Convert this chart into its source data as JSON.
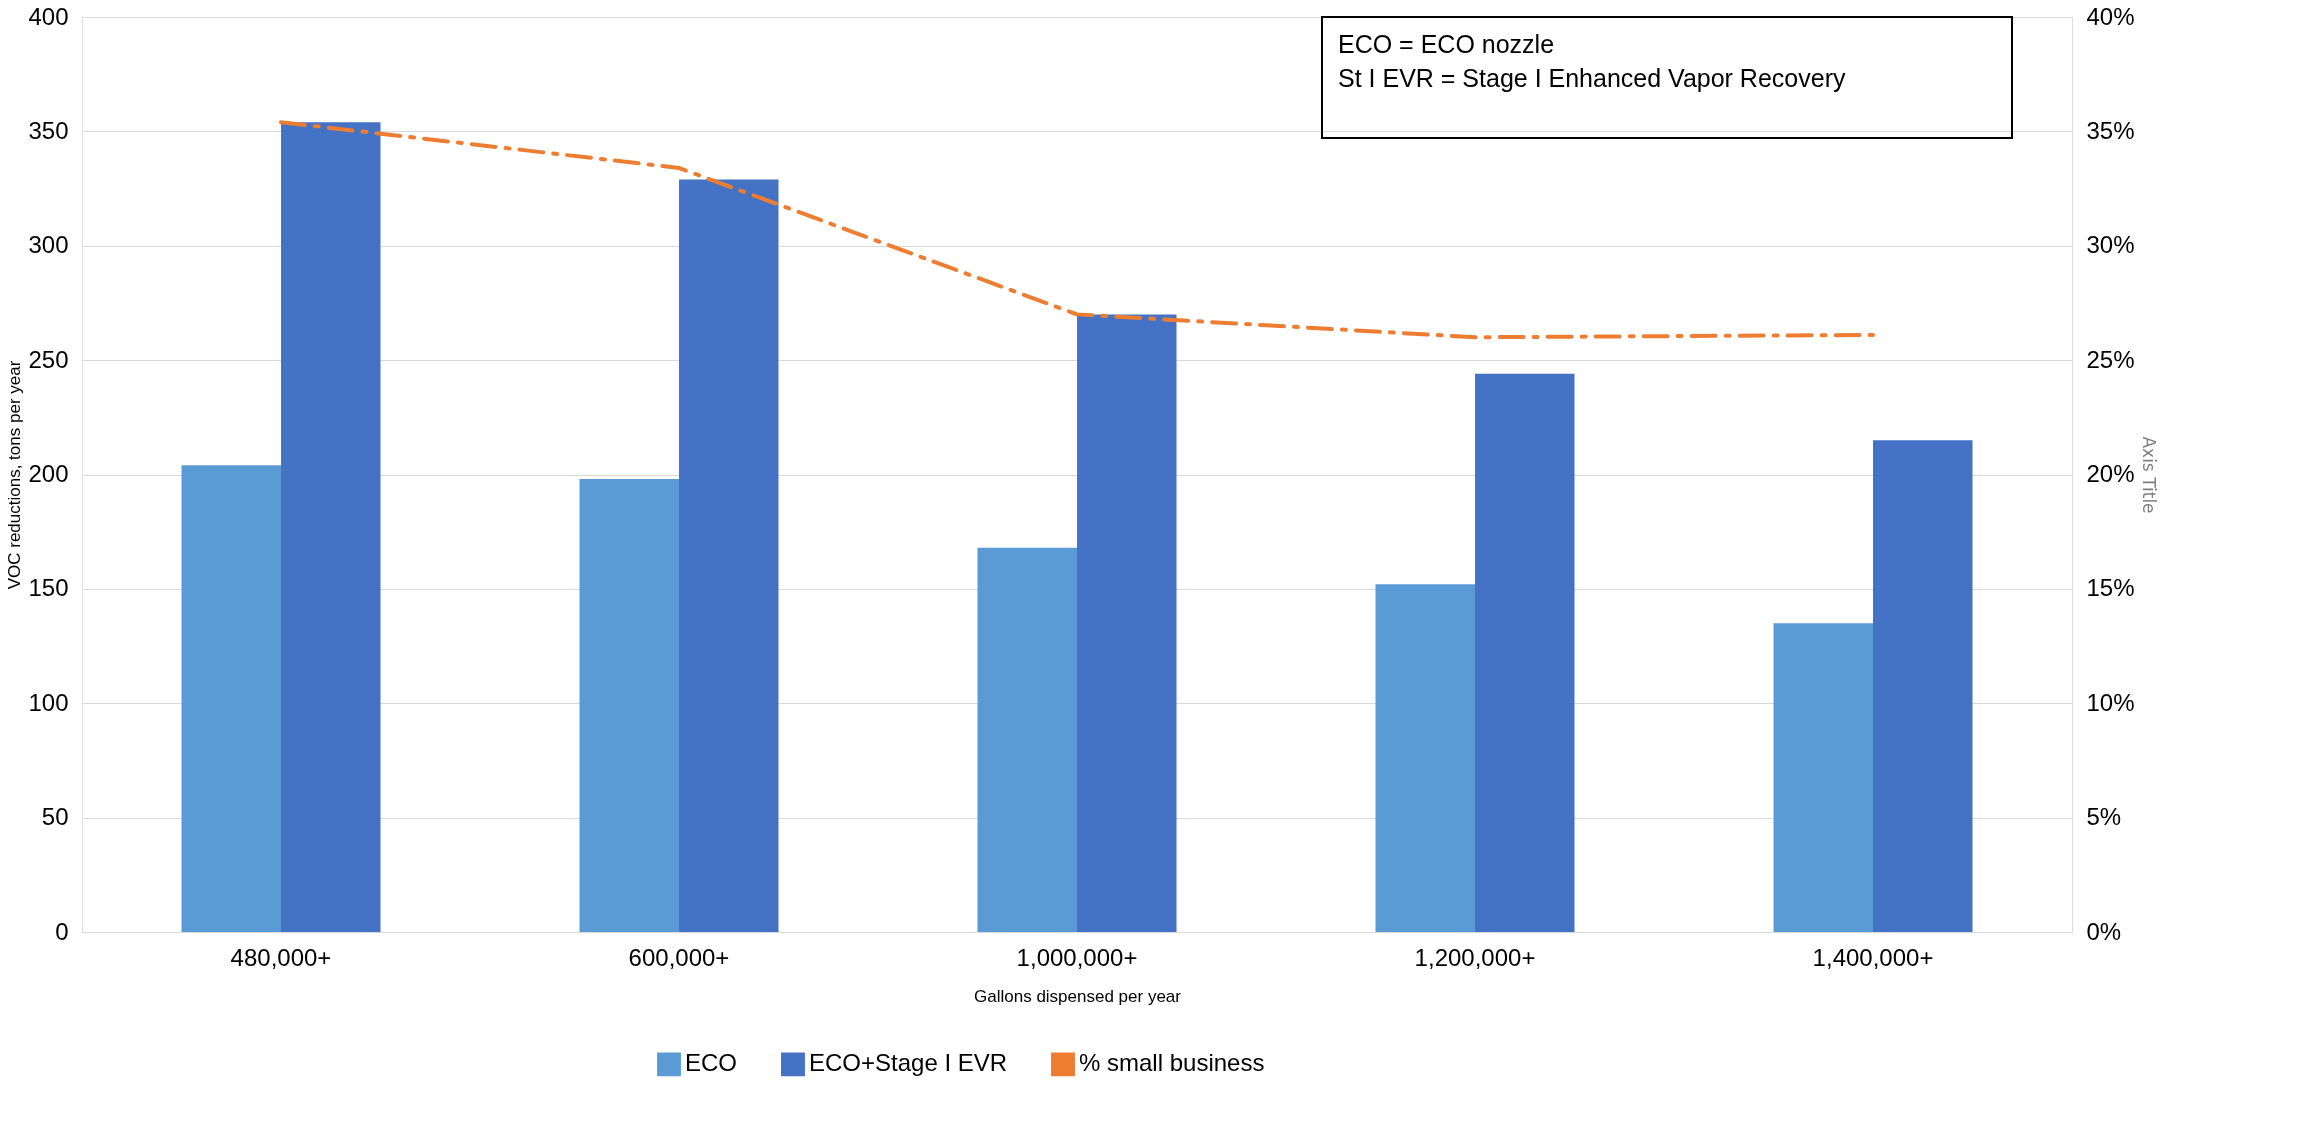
{
  "chart_data": {
    "type": "bar",
    "categories": [
      "480,000+",
      "600,000+",
      "1,000,000+",
      "1,200,000+",
      "1,400,000+"
    ],
    "xlabel": "Gallons dispensed per year",
    "ylabel": "VOC reductions, tons per year",
    "y2label": "Axis Title",
    "ylim": [
      0,
      400
    ],
    "yticks": [
      0,
      50,
      100,
      150,
      200,
      250,
      300,
      350,
      400
    ],
    "y2lim": [
      0,
      40
    ],
    "y2ticks": [
      {
        "value": 0,
        "label": "0%"
      },
      {
        "value": 5,
        "label": "5%"
      },
      {
        "value": 10,
        "label": "10%"
      },
      {
        "value": 15,
        "label": "15%"
      },
      {
        "value": 20,
        "label": "20%"
      },
      {
        "value": 25,
        "label": "25%"
      },
      {
        "value": 30,
        "label": "30%"
      },
      {
        "value": 35,
        "label": "35%"
      },
      {
        "value": 40,
        "label": "40%"
      }
    ],
    "series": [
      {
        "name": "ECO",
        "color": "#5b9bd5",
        "values": [
          204,
          198,
          168,
          152,
          135
        ]
      },
      {
        "name": "ECO+Stage I EVR",
        "color": "#4472c4",
        "values": [
          354,
          329,
          270,
          244,
          215
        ]
      },
      {
        "name": "% small business",
        "type": "line",
        "axis": "y2",
        "color": "#ed7d31",
        "line_style": "dashdot",
        "marker": "none",
        "values": [
          35.4,
          33.4,
          27.0,
          26.0,
          26.1
        ]
      }
    ],
    "annotations": [
      "ECO = ECO nozzle",
      "St I EVR = Stage I Enhanced Vapor Recovery"
    ],
    "grid": "y",
    "legend": "bottom"
  }
}
